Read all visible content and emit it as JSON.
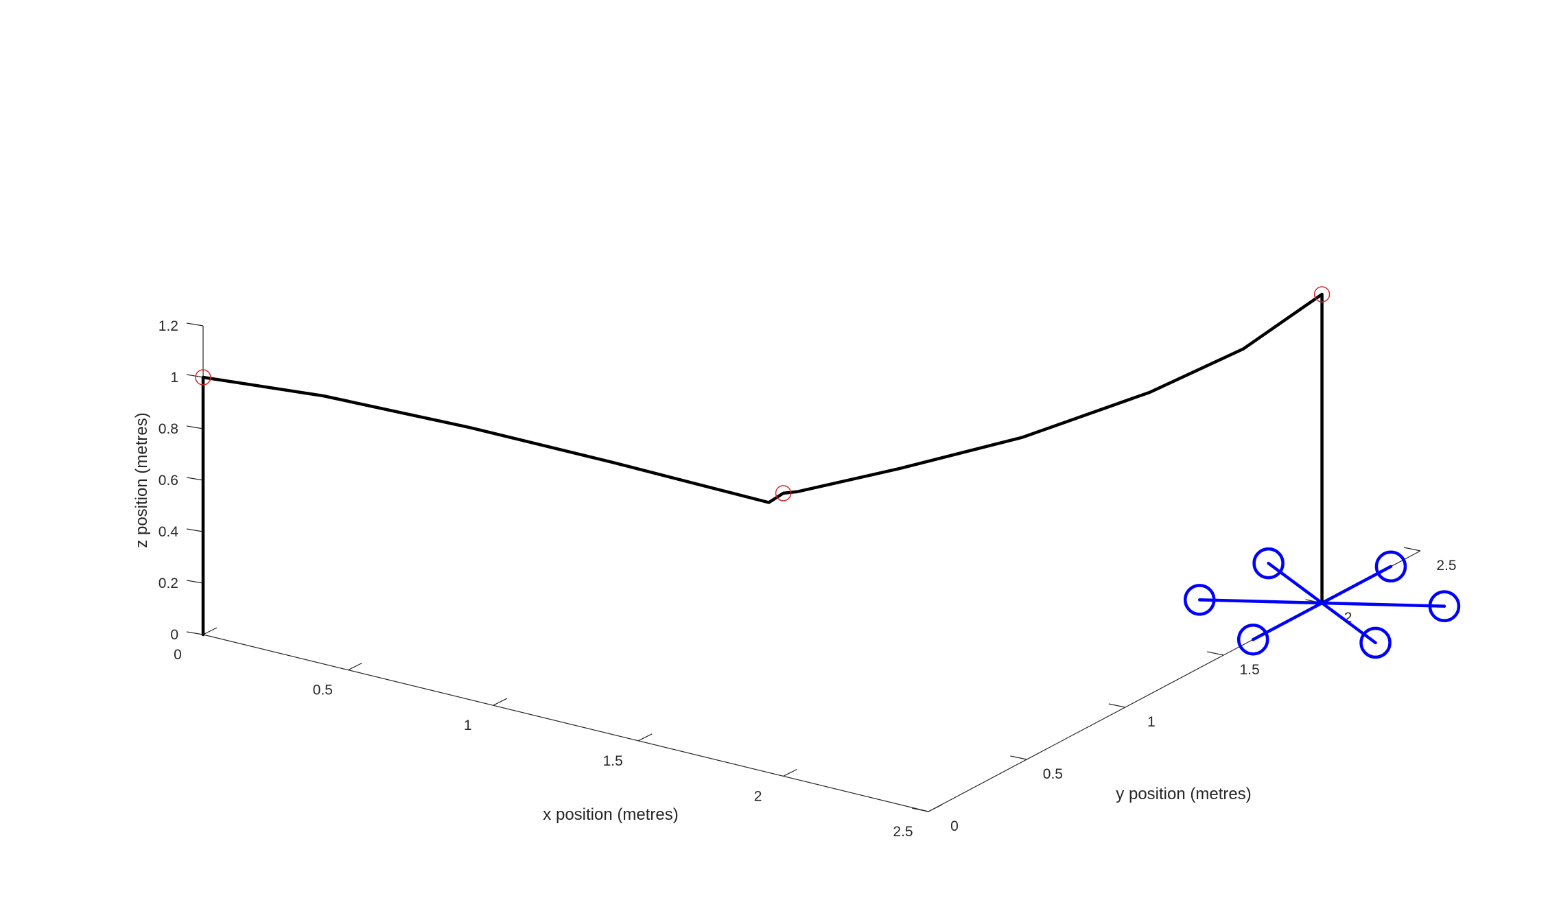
{
  "chart_data": {
    "type": "line",
    "projection": "3d",
    "xlabel": "x position (metres)",
    "ylabel": "y position (metres)",
    "zlabel": "z position (metres)",
    "xlim": [
      0,
      2.5
    ],
    "ylim": [
      0,
      2.5
    ],
    "zlim": [
      0,
      1.2
    ],
    "x_ticks": [
      "0",
      "0.5",
      "1",
      "1.5",
      "2",
      "2.5"
    ],
    "y_ticks": [
      "0",
      "0.5",
      "1",
      "1.5",
      "2",
      "2.5"
    ],
    "z_ticks": [
      "0",
      "0.2",
      "0.4",
      "0.6",
      "0.8",
      "1",
      "1.2"
    ],
    "grid": false,
    "series": [
      {
        "style": "trajectory",
        "color": "#000000",
        "points": [
          [
            0,
            0,
            0
          ],
          [
            0,
            0,
            1.0
          ],
          [
            0.4,
            0.02,
            1.03
          ],
          [
            0.9,
            0.03,
            1.04
          ],
          [
            1.4,
            0.03,
            1.04
          ],
          [
            1.8,
            0.02,
            1.04
          ],
          [
            1.95,
            0.0,
            1.05
          ],
          [
            2.0,
            0.0,
            1.1
          ],
          [
            2.05,
            0.0,
            1.12
          ],
          [
            2.2,
            0.3,
            1.13
          ],
          [
            2.35,
            0.7,
            1.13
          ],
          [
            2.45,
            1.2,
            1.13
          ],
          [
            2.5,
            1.6,
            1.15
          ],
          [
            2.5,
            2.0,
            1.2
          ],
          [
            2.5,
            2.0,
            0.0
          ]
        ]
      },
      {
        "style": "waypoints",
        "color": "#d62728",
        "marker": "circle",
        "points": [
          [
            0,
            0,
            1
          ],
          [
            2,
            0,
            1.1
          ],
          [
            2.5,
            2,
            1.2
          ]
        ]
      }
    ],
    "quadrotor": {
      "color": "#0000ff",
      "center": [
        2.5,
        2.0,
        0.0
      ],
      "arm_length": 0.35,
      "rotor_count": 6
    }
  }
}
